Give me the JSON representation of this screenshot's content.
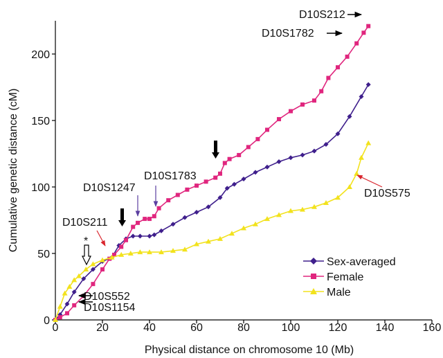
{
  "chart_data": {
    "type": "line",
    "xlabel": "Physical distance on chromosome 10 (Mb)",
    "ylabel": "Cumulative genetic distance (cM)",
    "xlim": [
      0,
      160
    ],
    "ylim": [
      0,
      225
    ],
    "xticks": [
      0,
      20,
      40,
      60,
      80,
      100,
      120,
      140,
      160
    ],
    "yticks": [
      0,
      50,
      100,
      150,
      200
    ],
    "grid": false,
    "legend_position": "bottom-right",
    "series": [
      {
        "name": "Sex-averaged",
        "color": "#3f1f8c",
        "marker": "diamond",
        "x": [
          0,
          2,
          5,
          8,
          12,
          16,
          20,
          24,
          27,
          30,
          33,
          36,
          40,
          42,
          45,
          50,
          55,
          60,
          65,
          70,
          73,
          76,
          80,
          85,
          90,
          95,
          100,
          105,
          110,
          115,
          120,
          125,
          130,
          133
        ],
        "y": [
          0,
          4,
          12,
          21,
          31,
          38,
          44,
          47,
          56,
          61,
          63,
          63,
          63,
          64,
          67,
          72,
          77,
          81,
          85,
          92,
          99,
          102,
          106,
          111,
          115,
          119,
          122,
          124,
          127,
          132,
          140,
          153,
          168,
          177
        ]
      },
      {
        "name": "Female",
        "color": "#e0267e",
        "marker": "square",
        "x": [
          0,
          2,
          5,
          8,
          12,
          16,
          20,
          23,
          25,
          28,
          30,
          33,
          35,
          38,
          40,
          42,
          44,
          48,
          52,
          56,
          60,
          64,
          68,
          70,
          72,
          74,
          78,
          82,
          86,
          90,
          95,
          100,
          105,
          110,
          113,
          116,
          120,
          124,
          128,
          131,
          133
        ],
        "y": [
          0,
          2,
          5,
          11,
          18,
          27,
          38,
          46,
          49,
          55,
          60,
          70,
          73,
          76,
          76,
          78,
          84,
          90,
          94,
          98,
          101,
          104,
          107,
          110,
          118,
          121,
          124,
          130,
          136,
          143,
          151,
          157,
          162,
          165,
          172,
          182,
          190,
          198,
          208,
          216,
          221
        ]
      },
      {
        "name": "Male",
        "color": "#f2e21d",
        "marker": "triangle",
        "x": [
          0,
          2,
          4,
          6,
          8,
          10,
          13,
          16,
          20,
          24,
          28,
          32,
          36,
          40,
          45,
          50,
          55,
          60,
          65,
          70,
          75,
          80,
          85,
          90,
          95,
          100,
          105,
          110,
          115,
          120,
          125,
          128,
          130,
          133
        ],
        "y": [
          0,
          10,
          20,
          25,
          30,
          33,
          38,
          42,
          45,
          47,
          49,
          50,
          51,
          51,
          51,
          52,
          53,
          57,
          59,
          61,
          65,
          69,
          72,
          76,
          79,
          82,
          83,
          85,
          88,
          92,
          100,
          110,
          122,
          133
        ]
      }
    ],
    "annotations": [
      {
        "id": "D10S212",
        "text": "D10S212"
      },
      {
        "id": "D10S1782",
        "text": "D10S1782"
      },
      {
        "id": "D10S1783",
        "text": "D10S1783"
      },
      {
        "id": "D10S1247",
        "text": "D10S1247"
      },
      {
        "id": "D10S211",
        "text": "D10S211"
      },
      {
        "id": "D10S575",
        "text": "D10S575"
      },
      {
        "id": "D10S552",
        "text": "D10S552"
      },
      {
        "id": "D10S1154",
        "text": "D10S1154"
      },
      {
        "id": "asterisk",
        "text": "*"
      }
    ]
  }
}
